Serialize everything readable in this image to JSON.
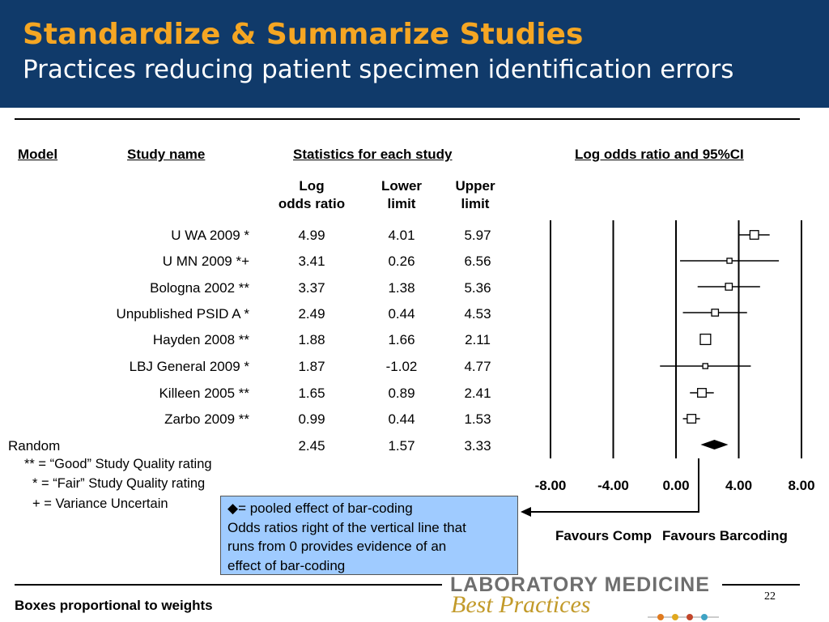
{
  "header": {
    "title": "Standardize & Summarize Studies",
    "subtitle": "Practices reducing patient specimen identification errors"
  },
  "columns": {
    "model": "Model",
    "study_name": "Study name",
    "statistics": "Statistics for each study",
    "plot_title": "Log odds ratio and 95%CI",
    "log_l1": "Log",
    "log_l2": "odds ratio",
    "lower_l1": "Lower",
    "lower_l2": "limit",
    "upper_l1": "Upper",
    "upper_l2": "limit"
  },
  "chart_data": {
    "type": "forest",
    "title": "Log odds ratio and 95%CI",
    "xlim": [
      -8,
      8
    ],
    "x_ticks": [
      -8,
      -4,
      0,
      4,
      8
    ],
    "x_tick_labels": [
      "-8.00",
      "-4.00",
      "0.00",
      "4.00",
      "8.00"
    ],
    "studies": [
      {
        "name": "U WA 2009 *",
        "log_or": "4.99",
        "lower": "4.01",
        "upper": "5.97",
        "est": 4.99,
        "lo": 4.01,
        "hi": 5.97,
        "weight": 3
      },
      {
        "name": "U MN 2009 *+",
        "log_or": "3.41",
        "lower": "0.26",
        "upper": "6.56",
        "est": 3.41,
        "lo": 0.26,
        "hi": 6.56,
        "weight": 1
      },
      {
        "name": "Bologna 2002 **",
        "log_or": "3.37",
        "lower": "1.38",
        "upper": "5.36",
        "est": 3.37,
        "lo": 1.38,
        "hi": 5.36,
        "weight": 2
      },
      {
        "name": "Unpublished PSID A *",
        "log_or": "2.49",
        "lower": "0.44",
        "upper": "4.53",
        "est": 2.49,
        "lo": 0.44,
        "hi": 4.53,
        "weight": 2
      },
      {
        "name": "Hayden 2008 **",
        "log_or": "1.88",
        "lower": "1.66",
        "upper": "2.11",
        "est": 1.88,
        "lo": 1.66,
        "hi": 2.11,
        "weight": 4
      },
      {
        "name": "LBJ General 2009 *",
        "log_or": "1.87",
        "lower": "-1.02",
        "upper": "4.77",
        "est": 1.87,
        "lo": -1.02,
        "hi": 4.77,
        "weight": 1
      },
      {
        "name": "Killeen 2005 **",
        "log_or": "1.65",
        "lower": "0.89",
        "upper": "2.41",
        "est": 1.65,
        "lo": 0.89,
        "hi": 2.41,
        "weight": 3
      },
      {
        "name": "Zarbo 2009 **",
        "log_or": "0.99",
        "lower": "0.44",
        "upper": "1.53",
        "est": 0.99,
        "lo": 0.44,
        "hi": 1.53,
        "weight": 3
      }
    ],
    "pooled": {
      "model": "Random",
      "log_or": "2.45",
      "lower": "1.57",
      "upper": "3.33",
      "est": 2.45,
      "lo": 1.57,
      "hi": 3.33
    },
    "favours_left": "Favours Comp",
    "favours_right": "Favours Barcoding"
  },
  "legend": {
    "good": "** = “Good” Study Quality rating",
    "fair": "* = “Fair” Study Quality rating",
    "variance": "+ = Variance Uncertain"
  },
  "callout": {
    "line1": "◆= pooled effect of bar-coding",
    "line2": "Odds ratios right of the vertical line that",
    "line3": "runs from 0 provides evidence of an",
    "line4": "effect of bar-coding"
  },
  "footer": {
    "note": "Boxes proportional to weights",
    "page": "22",
    "logo_line1": "LABORATORY  MEDICINE",
    "logo_line2": "Best Practices"
  }
}
